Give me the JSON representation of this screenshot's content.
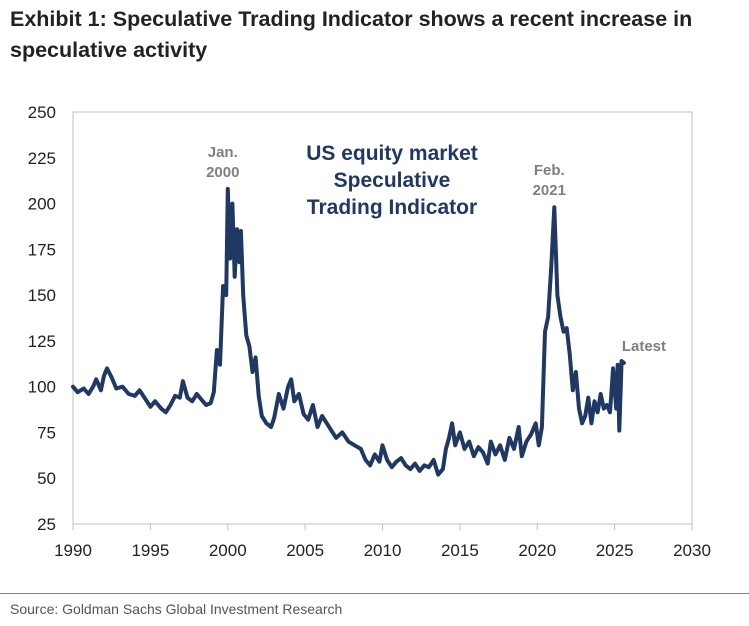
{
  "header": {
    "title_line1": "Exhibit 1: Speculative Trading Indicator shows a recent increase in",
    "title_line2": "speculative activity"
  },
  "footer": {
    "source": "Source: Goldman Sachs Global Investment Research"
  },
  "colors": {
    "series": "#1f3864",
    "inset_title": "#1f3864",
    "annotation": "#7f7f7f",
    "axis_text": "#222222",
    "frame": "#bfbfbf"
  },
  "chart_data": {
    "type": "line",
    "title": "US equity market Speculative Trading Indicator",
    "title_lines": [
      "US equity market",
      "Speculative",
      "Trading Indicator"
    ],
    "xlabel": "",
    "ylabel": "",
    "xlim": [
      1990,
      2030
    ],
    "ylim": [
      25,
      250
    ],
    "x_ticks": [
      1990,
      1995,
      2000,
      2005,
      2010,
      2015,
      2020,
      2025,
      2030
    ],
    "y_ticks": [
      25,
      50,
      75,
      100,
      125,
      150,
      175,
      200,
      225,
      250
    ],
    "grid": false,
    "legend": "none",
    "annotations": [
      {
        "lines": [
          "Jan.",
          "2000"
        ],
        "x": 2000.0,
        "y": 208
      },
      {
        "lines": [
          "Feb.",
          "2021"
        ],
        "x": 2021.1,
        "y": 198
      },
      {
        "lines": [
          "Latest"
        ],
        "x": 2025.6,
        "y": 113
      }
    ],
    "series": [
      {
        "values": [
          [
            1990.0,
            100
          ],
          [
            1990.3,
            97
          ],
          [
            1990.7,
            99
          ],
          [
            1991.0,
            96
          ],
          [
            1991.3,
            100
          ],
          [
            1991.5,
            104
          ],
          [
            1991.8,
            98
          ],
          [
            1992.0,
            106
          ],
          [
            1992.2,
            110
          ],
          [
            1992.5,
            105
          ],
          [
            1992.8,
            99
          ],
          [
            1993.2,
            100
          ],
          [
            1993.6,
            96
          ],
          [
            1994.0,
            95
          ],
          [
            1994.3,
            98
          ],
          [
            1994.7,
            93
          ],
          [
            1995.0,
            89
          ],
          [
            1995.3,
            92
          ],
          [
            1995.7,
            88
          ],
          [
            1996.0,
            86
          ],
          [
            1996.3,
            90
          ],
          [
            1996.6,
            95
          ],
          [
            1996.9,
            94
          ],
          [
            1997.1,
            103
          ],
          [
            1997.4,
            94
          ],
          [
            1997.7,
            92
          ],
          [
            1998.0,
            96
          ],
          [
            1998.3,
            93
          ],
          [
            1998.6,
            90
          ],
          [
            1998.9,
            91
          ],
          [
            1999.1,
            97
          ],
          [
            1999.3,
            120
          ],
          [
            1999.5,
            112
          ],
          [
            1999.7,
            155
          ],
          [
            1999.9,
            150
          ],
          [
            2000.0,
            208
          ],
          [
            2000.15,
            170
          ],
          [
            2000.3,
            200
          ],
          [
            2000.45,
            160
          ],
          [
            2000.6,
            186
          ],
          [
            2000.75,
            168
          ],
          [
            2000.85,
            185
          ],
          [
            2001.0,
            150
          ],
          [
            2001.2,
            128
          ],
          [
            2001.4,
            122
          ],
          [
            2001.6,
            108
          ],
          [
            2001.8,
            116
          ],
          [
            2002.0,
            95
          ],
          [
            2002.2,
            84
          ],
          [
            2002.5,
            80
          ],
          [
            2002.8,
            78
          ],
          [
            2003.0,
            83
          ],
          [
            2003.3,
            96
          ],
          [
            2003.6,
            88
          ],
          [
            2003.9,
            100
          ],
          [
            2004.1,
            104
          ],
          [
            2004.3,
            92
          ],
          [
            2004.6,
            96
          ],
          [
            2004.9,
            85
          ],
          [
            2005.2,
            82
          ],
          [
            2005.5,
            90
          ],
          [
            2005.8,
            78
          ],
          [
            2006.1,
            84
          ],
          [
            2006.4,
            80
          ],
          [
            2006.7,
            76
          ],
          [
            2007.0,
            72
          ],
          [
            2007.4,
            75
          ],
          [
            2007.8,
            70
          ],
          [
            2008.2,
            68
          ],
          [
            2008.6,
            66
          ],
          [
            2008.9,
            60
          ],
          [
            2009.2,
            57
          ],
          [
            2009.5,
            63
          ],
          [
            2009.8,
            59
          ],
          [
            2010.0,
            68
          ],
          [
            2010.3,
            60
          ],
          [
            2010.6,
            56
          ],
          [
            2010.9,
            59
          ],
          [
            2011.2,
            61
          ],
          [
            2011.5,
            57
          ],
          [
            2011.8,
            55
          ],
          [
            2012.1,
            58
          ],
          [
            2012.4,
            54
          ],
          [
            2012.7,
            57
          ],
          [
            2013.0,
            56
          ],
          [
            2013.3,
            60
          ],
          [
            2013.6,
            52
          ],
          [
            2013.9,
            55
          ],
          [
            2014.1,
            66
          ],
          [
            2014.3,
            72
          ],
          [
            2014.5,
            80
          ],
          [
            2014.7,
            68
          ],
          [
            2015.0,
            75
          ],
          [
            2015.3,
            66
          ],
          [
            2015.6,
            70
          ],
          [
            2015.9,
            62
          ],
          [
            2016.2,
            67
          ],
          [
            2016.5,
            64
          ],
          [
            2016.8,
            58
          ],
          [
            2017.0,
            70
          ],
          [
            2017.3,
            63
          ],
          [
            2017.6,
            68
          ],
          [
            2017.9,
            60
          ],
          [
            2018.2,
            72
          ],
          [
            2018.5,
            66
          ],
          [
            2018.8,
            78
          ],
          [
            2019.0,
            62
          ],
          [
            2019.3,
            70
          ],
          [
            2019.6,
            74
          ],
          [
            2019.9,
            80
          ],
          [
            2020.1,
            68
          ],
          [
            2020.3,
            78
          ],
          [
            2020.5,
            130
          ],
          [
            2020.7,
            138
          ],
          [
            2020.9,
            165
          ],
          [
            2021.1,
            198
          ],
          [
            2021.3,
            150
          ],
          [
            2021.5,
            138
          ],
          [
            2021.7,
            130
          ],
          [
            2021.9,
            132
          ],
          [
            2022.1,
            118
          ],
          [
            2022.3,
            98
          ],
          [
            2022.5,
            108
          ],
          [
            2022.7,
            88
          ],
          [
            2022.9,
            80
          ],
          [
            2023.1,
            84
          ],
          [
            2023.3,
            94
          ],
          [
            2023.5,
            80
          ],
          [
            2023.7,
            92
          ],
          [
            2023.9,
            86
          ],
          [
            2024.1,
            96
          ],
          [
            2024.3,
            88
          ],
          [
            2024.5,
            90
          ],
          [
            2024.7,
            86
          ],
          [
            2024.9,
            110
          ],
          [
            2025.1,
            88
          ],
          [
            2025.2,
            112
          ],
          [
            2025.3,
            76
          ],
          [
            2025.45,
            114
          ],
          [
            2025.6,
            113
          ]
        ]
      }
    ]
  }
}
